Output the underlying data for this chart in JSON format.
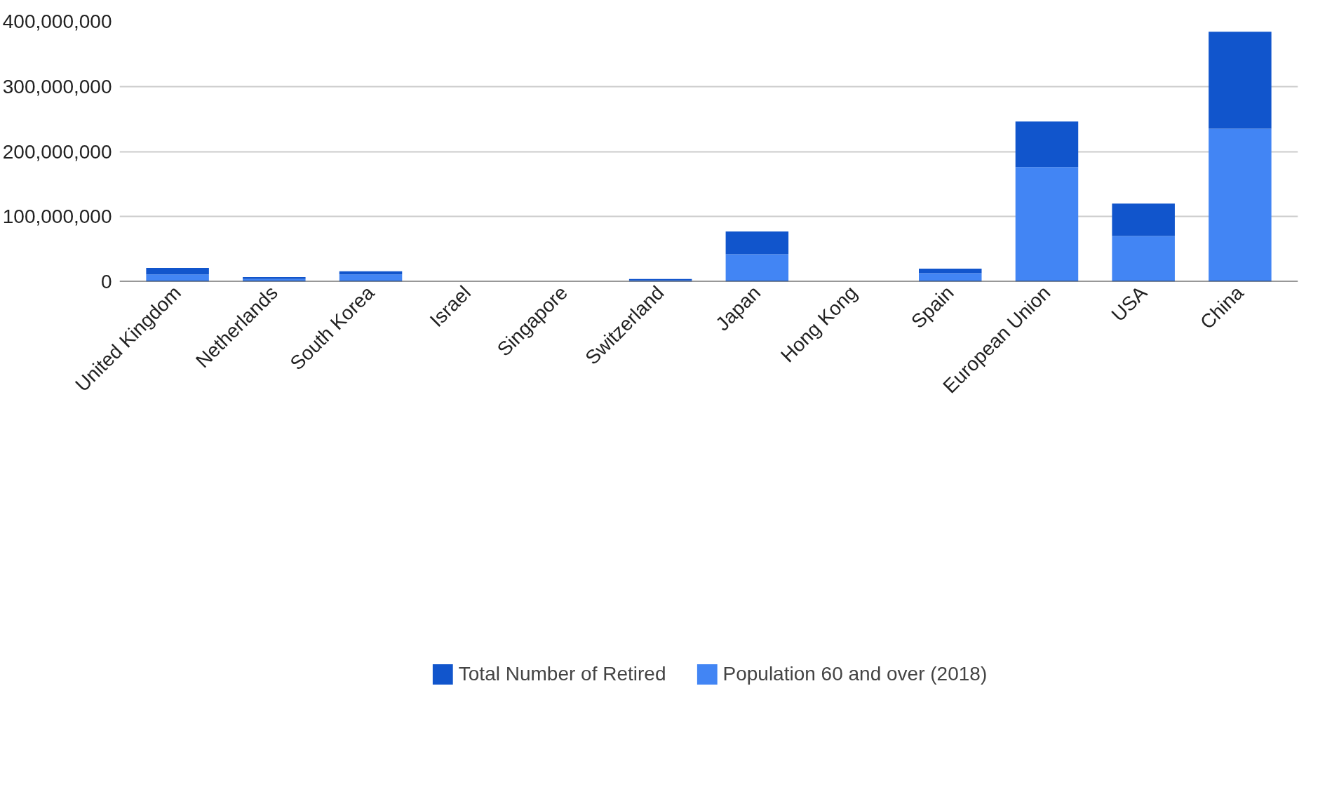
{
  "chart_data": {
    "type": "bar",
    "stacked": true,
    "categories": [
      "United Kingdom",
      "Netherlands",
      "South Korea",
      "Israel",
      "Singapore",
      "Switzerland",
      "Japan",
      "Hong Kong",
      "Spain",
      "European Union",
      "USA",
      "China"
    ],
    "series": [
      {
        "name": "Population 60 and over (2018)",
        "color": "#4285f4",
        "values": [
          11000000,
          4000000,
          11000000,
          null,
          null,
          2000000,
          42000000,
          null,
          13000000,
          176000000,
          70000000,
          235000000
        ]
      },
      {
        "name": "Total Number of Retired",
        "color": "#1155cc",
        "values": [
          10000000,
          3000000,
          5000000,
          null,
          null,
          2000000,
          35000000,
          null,
          7000000,
          70000000,
          50000000,
          149000000
        ]
      }
    ],
    "ylim": [
      0,
      400000000
    ],
    "yticks": [
      0,
      {
        "value": 100000000,
        "label": "100,000,000"
      },
      {
        "value": 200000000,
        "label": "200,000,000"
      },
      {
        "value": 300000000,
        "label": "300,000,000"
      },
      {
        "value": 400000000,
        "label": "400,000,000"
      }
    ],
    "grid": "y",
    "legend": "bottom"
  }
}
